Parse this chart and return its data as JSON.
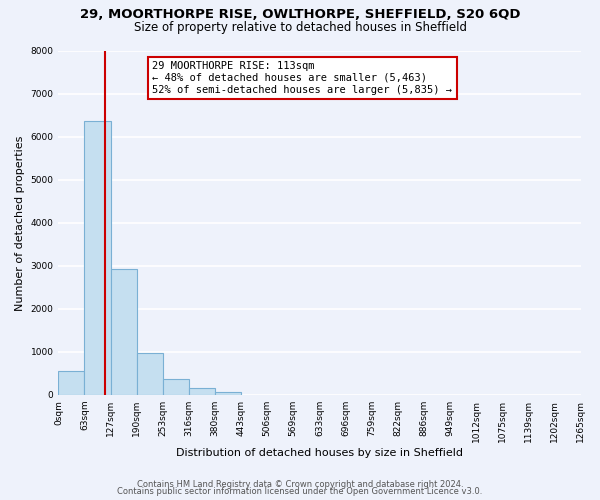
{
  "title1": "29, MOORTHORPE RISE, OWLTHORPE, SHEFFIELD, S20 6QD",
  "title2": "Size of property relative to detached houses in Sheffield",
  "xlabel": "Distribution of detached houses by size in Sheffield",
  "ylabel": "Number of detached properties",
  "bin_edges": [
    0,
    63,
    127,
    190,
    253,
    316,
    380,
    443,
    506,
    569,
    633,
    696,
    759,
    822,
    886,
    949,
    1012,
    1075,
    1139,
    1202,
    1265
  ],
  "bin_labels": [
    "0sqm",
    "63sqm",
    "127sqm",
    "190sqm",
    "253sqm",
    "316sqm",
    "380sqm",
    "443sqm",
    "506sqm",
    "569sqm",
    "633sqm",
    "696sqm",
    "759sqm",
    "822sqm",
    "886sqm",
    "949sqm",
    "1012sqm",
    "1075sqm",
    "1139sqm",
    "1202sqm",
    "1265sqm"
  ],
  "bar_heights": [
    560,
    6370,
    2920,
    970,
    370,
    160,
    60,
    0,
    0,
    0,
    0,
    0,
    0,
    0,
    0,
    0,
    0,
    0,
    0,
    0
  ],
  "bar_color": "#c5dff0",
  "bar_edge_color": "#7ab0d4",
  "property_line_x": 113,
  "property_line_color": "#cc0000",
  "annotation_line1": "29 MOORTHORPE RISE: 113sqm",
  "annotation_line2": "← 48% of detached houses are smaller (5,463)",
  "annotation_line3": "52% of semi-detached houses are larger (5,835) →",
  "annotation_box_color": "#ffffff",
  "annotation_box_edge_color": "#cc0000",
  "ylim": [
    0,
    8000
  ],
  "yticks": [
    0,
    1000,
    2000,
    3000,
    4000,
    5000,
    6000,
    7000,
    8000
  ],
  "footer1": "Contains HM Land Registry data © Crown copyright and database right 2024.",
  "footer2": "Contains public sector information licensed under the Open Government Licence v3.0.",
  "background_color": "#eef2fb",
  "grid_color": "#ffffff",
  "title1_fontsize": 9.5,
  "title2_fontsize": 8.5,
  "xlabel_fontsize": 8,
  "ylabel_fontsize": 8,
  "tick_fontsize": 6.5,
  "annotation_fontsize": 7.5,
  "footer_fontsize": 6
}
